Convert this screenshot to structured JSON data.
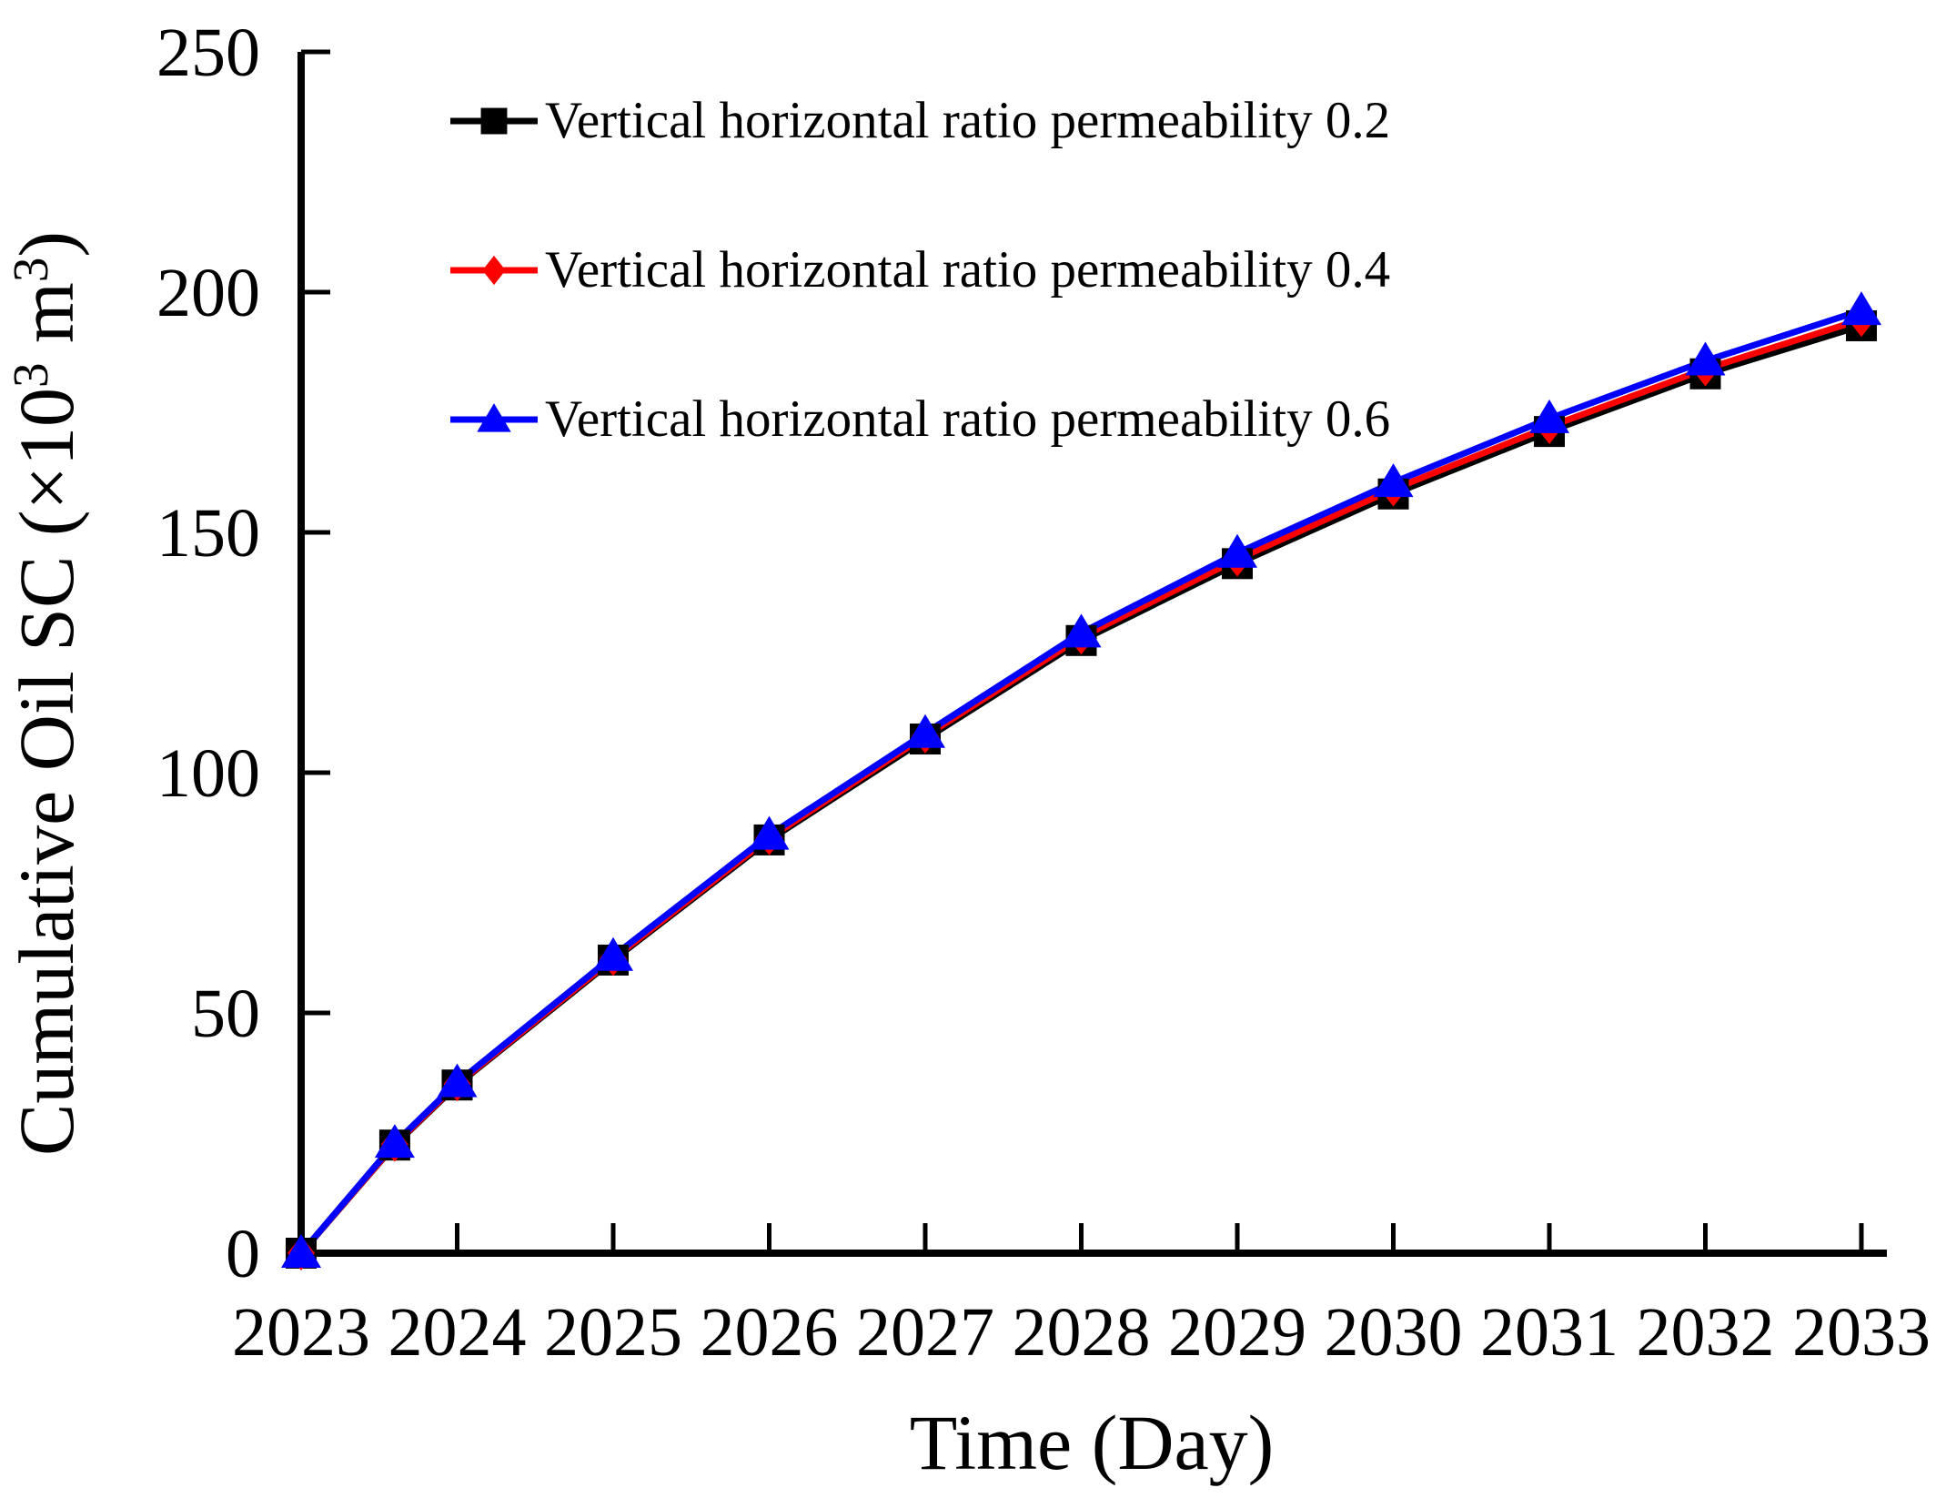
{
  "figure": {
    "background": "#ffffff",
    "axis_color": "#000000"
  },
  "chart_data": {
    "type": "line",
    "title": "",
    "xlabel": "Time (Day)",
    "ylabel": "Cumulative Oil SC (×10³ m³)",
    "ylabel_parts": [
      {
        "t": "Cumulative Oil SC (×10"
      },
      {
        "t": "3",
        "sup": true
      },
      {
        "t": " m"
      },
      {
        "t": "3",
        "sup": true
      },
      {
        "t": ")"
      }
    ],
    "xlim": [
      2023,
      2033
    ],
    "ylim": [
      0,
      250
    ],
    "x_ticks": [
      2023,
      2024,
      2025,
      2026,
      2027,
      2028,
      2029,
      2030,
      2031,
      2032,
      2033
    ],
    "y_ticks": [
      0,
      50,
      100,
      150,
      200,
      250
    ],
    "grid": false,
    "legend_position": "upper-left-inside",
    "x": [
      2023,
      2023.6,
      2024,
      2025,
      2026,
      2027,
      2028,
      2029,
      2030,
      2031,
      2032,
      2033
    ],
    "series": [
      {
        "name": "Vertical horizontal ratio permeability 0.2",
        "color": "#000000",
        "marker": "square",
        "values": [
          0,
          22.5,
          35,
          61,
          86,
          107,
          127.5,
          143.5,
          158,
          171,
          183,
          193
        ]
      },
      {
        "name": "Vertical horizontal ratio permeability 0.4",
        "color": "#ff0000",
        "marker": "diamond",
        "values": [
          0,
          22.6,
          35.2,
          61.3,
          86.4,
          107.6,
          128.2,
          144.4,
          159,
          172,
          184,
          194.3
        ]
      },
      {
        "name": "Vertical horizontal ratio permeability 0.6",
        "color": "#0000ff",
        "marker": "triangle",
        "values": [
          0,
          22.9,
          35.5,
          61.8,
          87,
          108.2,
          129.1,
          145.7,
          160.4,
          173.7,
          185.7,
          196.2
        ]
      }
    ]
  }
}
